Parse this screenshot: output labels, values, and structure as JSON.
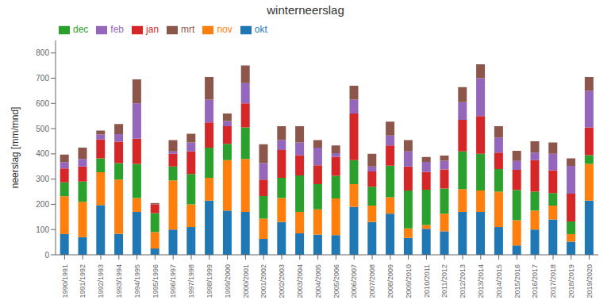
{
  "chart_data": {
    "type": "bar",
    "title": "winterneerslag",
    "y_label": "neerslag [mm/mnd]",
    "stacked": true,
    "grid": false,
    "legend": "upper left",
    "categories": [
      "1990/1991",
      "1991/1992",
      "1992/1993",
      "1993/1994",
      "1994/1995",
      "1995/1996",
      "1996/1997",
      "1997/1998",
      "1998/1999",
      "1999/2000",
      "2000/2001",
      "2001/2002",
      "2002/2003",
      "2003/2004",
      "2004/2005",
      "2005/2006",
      "2006/2007",
      "2007/2008",
      "2008/2009",
      "2009/2010",
      "2010/2011",
      "2011/2012",
      "2012/2013",
      "2013/2014",
      "2014/2015",
      "2015/2016",
      "2016/2017",
      "2017/2018",
      "2018/2019",
      "2019/2020"
    ],
    "series": [
      {
        "name": "okt",
        "color": "#1f77b4",
        "values": [
          82,
          70,
          197,
          83,
          170,
          25,
          100,
          110,
          215,
          175,
          170,
          63,
          130,
          85,
          80,
          78,
          190,
          130,
          163,
          67,
          103,
          93,
          170,
          170,
          110,
          37,
          100,
          140,
          52,
          215
        ]
      },
      {
        "name": "nov",
        "color": "#ff7f0e",
        "values": [
          150,
          140,
          130,
          215,
          55,
          65,
          195,
          90,
          90,
          200,
          210,
          80,
          95,
          85,
          100,
          145,
          90,
          65,
          65,
          38,
          15,
          70,
          90,
          85,
          140,
          100,
          75,
          55,
          30,
          145
        ]
      },
      {
        "name": "dec",
        "color": "#2ca02c",
        "values": [
          55,
          80,
          55,
          65,
          135,
          75,
          55,
          120,
          120,
          65,
          125,
          90,
          80,
          145,
          100,
          90,
          95,
          75,
          125,
          150,
          140,
          100,
          150,
          145,
          90,
          120,
          75,
          50,
          50,
          35
        ]
      },
      {
        "name": "jan",
        "color": "#d62728",
        "values": [
          55,
          60,
          75,
          85,
          100,
          35,
          50,
          90,
          100,
          70,
          95,
          65,
          110,
          80,
          75,
          75,
          185,
          60,
          80,
          95,
          70,
          75,
          125,
          150,
          65,
          80,
          125,
          90,
          110,
          110
        ]
      },
      {
        "name": "feb",
        "color": "#9467bd",
        "values": [
          25,
          30,
          20,
          30,
          140,
          0,
          10,
          35,
          90,
          20,
          80,
          65,
          40,
          50,
          70,
          15,
          55,
          20,
          40,
          60,
          40,
          35,
          70,
          150,
          60,
          35,
          30,
          65,
          110,
          145
        ]
      },
      {
        "name": "mrt",
        "color": "#8c564b",
        "values": [
          30,
          45,
          15,
          40,
          95,
          5,
          45,
          35,
          90,
          30,
          70,
          75,
          55,
          65,
          30,
          30,
          55,
          50,
          55,
          45,
          20,
          20,
          60,
          55,
          45,
          40,
          45,
          45,
          30,
          55
        ]
      }
    ],
    "ylim": [
      0,
      850
    ],
    "yticks": [
      0,
      100,
      200,
      300,
      400,
      500,
      600,
      700,
      800
    ]
  }
}
